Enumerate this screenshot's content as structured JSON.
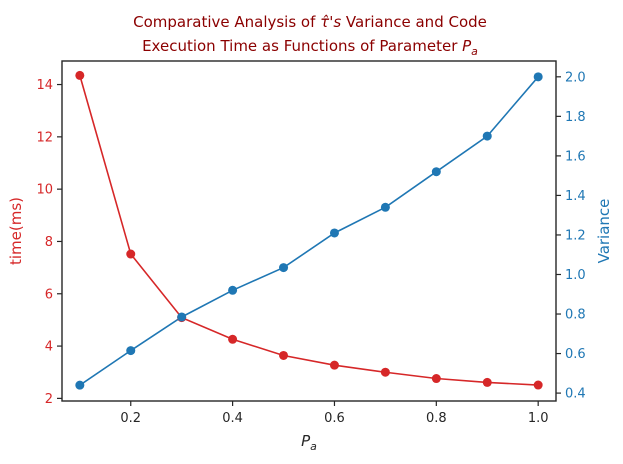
{
  "chart_data": {
    "type": "line",
    "title_line1": "Comparative Analysis of τ̂'s Variance and Code",
    "title_line2": "Execution Time as Functions of Parameter Pa",
    "xlabel": "Pa",
    "ylabel_left": "time(ms)",
    "ylabel_right": "Variance",
    "xlim": [
      0.065,
      1.035
    ],
    "ylim_left": [
      1.9,
      14.9
    ],
    "ylim_right": [
      0.36,
      2.08
    ],
    "x_ticks": [
      0.2,
      0.4,
      0.6,
      0.8,
      1.0
    ],
    "x_tick_labels": [
      "0.2",
      "0.4",
      "0.6",
      "0.8",
      "1.0"
    ],
    "left_ticks": [
      2,
      4,
      6,
      8,
      10,
      12,
      14
    ],
    "left_tick_labels": [
      "2",
      "4",
      "6",
      "8",
      "10",
      "12",
      "14"
    ],
    "right_ticks": [
      0.4,
      0.6,
      0.8,
      1.0,
      1.2,
      1.4,
      1.6,
      1.8,
      2.0
    ],
    "right_tick_labels": [
      "0.4",
      "0.6",
      "0.8",
      "1.0",
      "1.2",
      "1.4",
      "1.6",
      "1.8",
      "2.0"
    ],
    "grid": false,
    "x": [
      0.1,
      0.2,
      0.3,
      0.4,
      0.5,
      0.6,
      0.7,
      0.8,
      0.9,
      1.0
    ],
    "series": [
      {
        "axis": "left",
        "color": "#d62728",
        "values": [
          14.35,
          7.52,
          5.09,
          4.26,
          3.64,
          3.27,
          3.0,
          2.76,
          2.61,
          2.51
        ]
      },
      {
        "axis": "right",
        "color": "#1f77b4",
        "values": [
          0.44,
          0.615,
          0.785,
          0.92,
          1.035,
          1.21,
          1.34,
          1.52,
          1.7,
          2.0
        ]
      }
    ]
  }
}
